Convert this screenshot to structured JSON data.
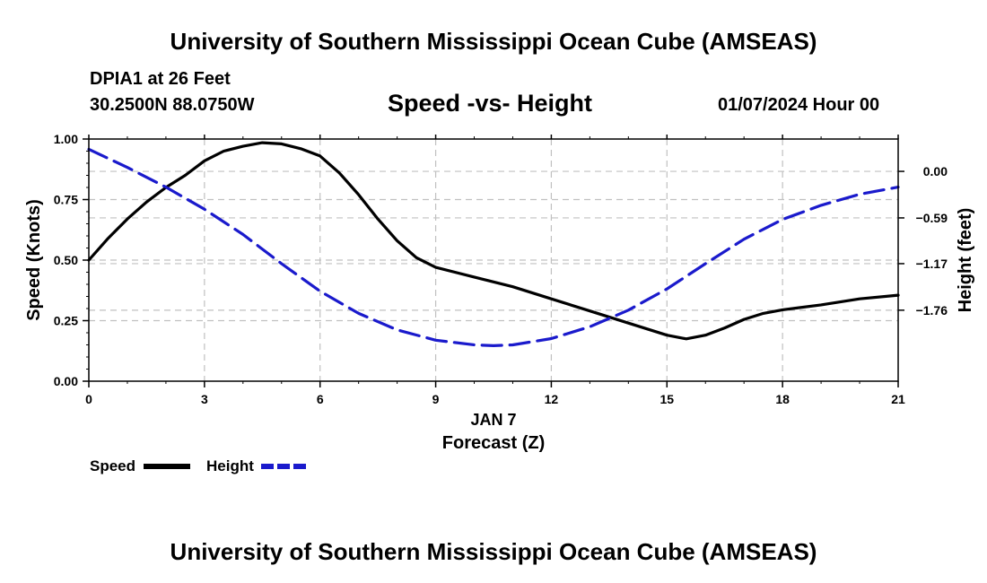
{
  "header": {
    "title": "University of Southern Mississippi Ocean Cube (AMSEAS)",
    "station": "DPIA1 at 26 Feet",
    "location": "30.2500N  88.0750W",
    "subtitle": "Speed -vs- Height",
    "datetime": "01/07/2024 Hour 00"
  },
  "footer": {
    "title": "University of Southern Mississippi Ocean Cube (AMSEAS)"
  },
  "chart_data": {
    "type": "line",
    "title": "Speed -vs- Height",
    "xlabel_date": "JAN 7",
    "xlabel": "Forecast (Z)",
    "ylabel": "Speed (Knots)",
    "y2label": "Height (feet)",
    "xlim": [
      0,
      21
    ],
    "ylim": [
      0,
      1
    ],
    "y2lim": [
      -2.66,
      0.41
    ],
    "grid": true,
    "x_ticks": [
      0,
      3,
      6,
      9,
      12,
      15,
      18,
      21
    ],
    "x_tick_labels": [
      "0",
      "3",
      "6",
      "9",
      "12",
      "15",
      "18",
      "21"
    ],
    "y_ticks": [
      0,
      0.25,
      0.5,
      0.75,
      1.0
    ],
    "y_tick_labels": [
      "0.00",
      "0.25",
      "0.50",
      "0.75",
      "1.00"
    ],
    "y2_ticks": [
      0.0,
      -0.59,
      -1.17,
      -1.76
    ],
    "y2_tick_labels": [
      "0.00",
      "-0.59",
      "-1.17",
      "-1.76"
    ],
    "legend": [
      {
        "name": "Speed",
        "color": "#000000",
        "style": "solid"
      },
      {
        "name": "Height",
        "color": "#1a1acc",
        "style": "dashed"
      }
    ],
    "series": [
      {
        "name": "Speed",
        "axis": "left",
        "color": "#000000",
        "style": "solid",
        "x": [
          0,
          0.5,
          1,
          1.5,
          2,
          2.5,
          3,
          3.5,
          4,
          4.5,
          5,
          5.5,
          6,
          6.5,
          7,
          7.5,
          8,
          8.5,
          9,
          10,
          11,
          12,
          13,
          14,
          15,
          15.5,
          16,
          16.5,
          17,
          17.5,
          18,
          19,
          20,
          21
        ],
        "values": [
          0.5,
          0.59,
          0.67,
          0.74,
          0.8,
          0.85,
          0.91,
          0.95,
          0.97,
          0.985,
          0.98,
          0.96,
          0.93,
          0.86,
          0.77,
          0.67,
          0.58,
          0.51,
          0.47,
          0.43,
          0.39,
          0.34,
          0.29,
          0.24,
          0.19,
          0.175,
          0.19,
          0.22,
          0.255,
          0.28,
          0.295,
          0.315,
          0.34,
          0.355
        ]
      },
      {
        "name": "Height",
        "axis": "right",
        "color": "#1a1acc",
        "style": "dashed",
        "x": [
          0,
          1,
          2,
          3,
          4,
          5,
          6,
          7,
          8,
          9,
          10,
          10.5,
          11,
          12,
          13,
          14,
          15,
          16,
          17,
          18,
          19,
          20,
          21
        ],
        "values": [
          0.28,
          0.05,
          -0.2,
          -0.48,
          -0.8,
          -1.17,
          -1.52,
          -1.8,
          -2.01,
          -2.14,
          -2.2,
          -2.21,
          -2.2,
          -2.12,
          -1.97,
          -1.76,
          -1.49,
          -1.17,
          -0.86,
          -0.61,
          -0.43,
          -0.29,
          -0.2
        ]
      }
    ]
  }
}
